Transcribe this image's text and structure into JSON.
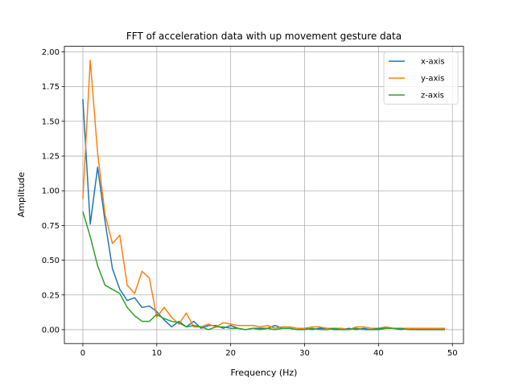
{
  "chart_data": {
    "type": "line",
    "title": "FFT of acceleration data with up movement gesture data",
    "xlabel": "Frequency (Hz)",
    "ylabel": "Amplitude",
    "xlim": [
      -2.5,
      51.5
    ],
    "ylim": [
      -0.1,
      2.04
    ],
    "xticks": [
      0,
      10,
      20,
      30,
      40,
      50
    ],
    "xtick_labels": [
      "0",
      "10",
      "20",
      "30",
      "40",
      "50"
    ],
    "yticks": [
      0.0,
      0.25,
      0.5,
      0.75,
      1.0,
      1.25,
      1.5,
      1.75,
      2.0
    ],
    "ytick_labels": [
      "0.00",
      "0.25",
      "0.50",
      "0.75",
      "1.00",
      "1.25",
      "1.50",
      "1.75",
      "2.00"
    ],
    "grid": true,
    "legend_position": "top-right",
    "x": [
      0,
      1,
      2,
      3,
      4,
      5,
      6,
      7,
      8,
      9,
      10,
      11,
      12,
      13,
      14,
      15,
      16,
      17,
      18,
      19,
      20,
      21,
      22,
      23,
      24,
      25,
      26,
      27,
      28,
      29,
      30,
      31,
      32,
      33,
      34,
      35,
      36,
      37,
      38,
      39,
      40,
      41,
      42,
      43,
      44,
      45,
      46,
      47,
      48,
      49
    ],
    "series": [
      {
        "name": "x-axis",
        "color": "#1f77b4",
        "values": [
          1.66,
          0.76,
          1.17,
          0.78,
          0.44,
          0.29,
          0.21,
          0.23,
          0.16,
          0.17,
          0.13,
          0.07,
          0.02,
          0.06,
          0.02,
          0.06,
          0.01,
          0.03,
          0.03,
          0.01,
          0.03,
          0.01,
          0.0,
          0.01,
          0.01,
          0.01,
          0.03,
          0.01,
          0.01,
          0.0,
          0.01,
          0.0,
          0.01,
          0.01,
          0.0,
          0.0,
          0.01,
          0.0,
          0.01,
          0.0,
          0.0,
          0.01,
          0.01,
          0.0,
          0.01,
          0.0,
          0.0,
          0.0,
          0.0,
          0.0
        ]
      },
      {
        "name": "y-axis",
        "color": "#ff7f0e",
        "values": [
          0.94,
          1.94,
          1.27,
          0.83,
          0.62,
          0.68,
          0.32,
          0.26,
          0.42,
          0.37,
          0.09,
          0.16,
          0.09,
          0.04,
          0.12,
          0.02,
          0.02,
          0.04,
          0.02,
          0.05,
          0.04,
          0.03,
          0.03,
          0.03,
          0.02,
          0.03,
          0.01,
          0.02,
          0.02,
          0.01,
          0.01,
          0.02,
          0.02,
          0.01,
          0.01,
          0.01,
          0.0,
          0.02,
          0.02,
          0.01,
          0.01,
          0.02,
          0.01,
          0.01,
          0.01,
          0.01,
          0.01,
          0.01,
          0.01,
          0.01
        ]
      },
      {
        "name": "z-axis",
        "color": "#2ca02c",
        "values": [
          0.85,
          0.67,
          0.46,
          0.32,
          0.29,
          0.26,
          0.16,
          0.1,
          0.06,
          0.06,
          0.11,
          0.08,
          0.06,
          0.05,
          0.02,
          0.03,
          0.02,
          0.0,
          0.02,
          0.02,
          0.01,
          0.01,
          0.0,
          0.01,
          0.0,
          0.01,
          0.0,
          0.01,
          0.01,
          0.0,
          0.0,
          0.01,
          0.0,
          0.0,
          0.01,
          0.0,
          0.0,
          0.01,
          0.0,
          0.0,
          0.01,
          0.01,
          0.01,
          0.01,
          0.0,
          0.0,
          0.0,
          0.0,
          0.0,
          0.0
        ]
      }
    ]
  }
}
